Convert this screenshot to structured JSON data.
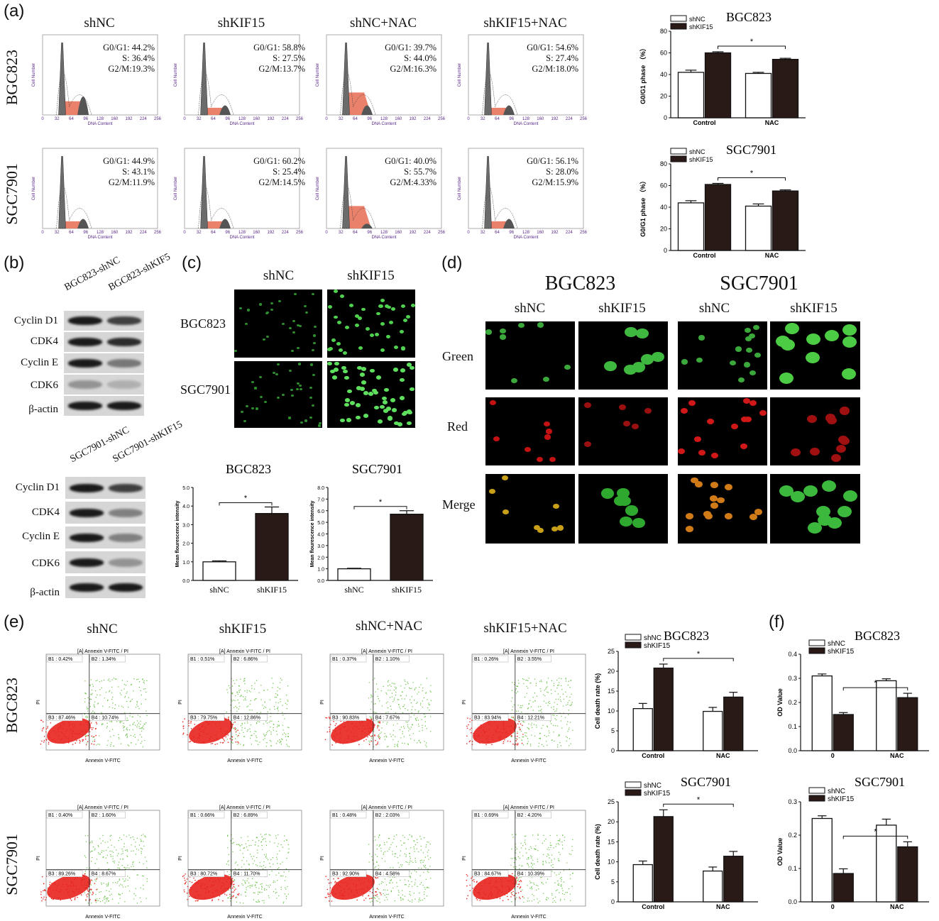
{
  "panels": {
    "a": "(a)",
    "b": "(b)",
    "c": "(c)",
    "d": "(d)",
    "e": "(e)",
    "f": "(f)"
  },
  "cell_lines": [
    "BGC823",
    "SGC7901"
  ],
  "groups_a": [
    "shNC",
    "shKIF15",
    "shNC+NAC",
    "shKIF15+NAC"
  ],
  "cell_cycle_stats": {
    "BGC823": [
      {
        "g0g1": "G0/G1: 44.2%",
        "s": "S: 36.4%",
        "g2m": "G2/M:19.3%"
      },
      {
        "g0g1": "G0/G1: 58.8%",
        "s": "S: 27.5%",
        "g2m": "G2/M:13.7%"
      },
      {
        "g0g1": "G0/G1: 39.7%",
        "s": "S: 44.0%",
        "g2m": "G2/M:16.3%"
      },
      {
        "g0g1": "G0/G1: 54.6%",
        "s": "S: 27.4%",
        "g2m": "G2/M:18.0%"
      }
    ],
    "SGC7901": [
      {
        "g0g1": "G0/G1: 44.9%",
        "s": "S: 43.1%",
        "g2m": "G2/M:11.9%"
      },
      {
        "g0g1": "G0/G1: 60.2%",
        "s": "S: 25.4%",
        "g2m": "G2/M:14.5%"
      },
      {
        "g0g1": "G0/G1: 40.0%",
        "s": "S: 55.7%",
        "g2m": "G2/M:4.33%"
      },
      {
        "g0g1": "G0/G1: 56.1%",
        "s": "S: 28.0%",
        "g2m": "G2/M:15.9%"
      }
    ]
  },
  "hist_axis": {
    "xlabel": "DNA Content",
    "ylabel": "Cell Number",
    "xticks": [
      "0",
      "32",
      "64",
      "96",
      "128",
      "160",
      "192",
      "224",
      "256"
    ]
  },
  "western": {
    "bgc_lanes": [
      "BGC823-shNC",
      "BGC823-shKIF5"
    ],
    "sgc_lanes": [
      "SGC7901-shNC",
      "SGC7901-shKIF15"
    ],
    "proteins": [
      "Cyclin D1",
      "CDK4",
      "Cyclin E",
      "CDK6",
      "β-actin"
    ]
  },
  "panel_c": {
    "cols": [
      "shNC",
      "shKIF15"
    ],
    "rows": [
      "BGC823",
      "SGC7901"
    ]
  },
  "panel_d": {
    "lines": [
      "BGC823",
      "SGC7901"
    ],
    "cols": [
      "shNC",
      "shKIF15",
      "shNC",
      "shKIF15"
    ],
    "rows": [
      "Green",
      "Red",
      "Merge"
    ]
  },
  "groups_e": [
    "shNC",
    "shKIF15",
    "shNC+NAC",
    "shKIF15+NAC"
  ],
  "flow": {
    "title": "[A] Annexin V-FITC / PI",
    "xlabel": "Annexin V-FITC",
    "ylabel": "PI",
    "BGC823": [
      {
        "b1": "B1 : 0.42%",
        "b2": "B2 : 1.34%",
        "b3": "B3 : 87.46%",
        "b4": "B4 : 10.74%"
      },
      {
        "b1": "B1 : 0.51%",
        "b2": "B2 : 6.86%",
        "b3": "B3 : 79.75%",
        "b4": "B4 : 12.86%"
      },
      {
        "b1": "B1 : 0.37%",
        "b2": "B2 : 1.10%",
        "b3": "B3 : 90.83%",
        "b4": "B4 : 7.67%"
      },
      {
        "b1": "B1 : 0.26%",
        "b2": "B2 : 3.55%",
        "b3": "B3 : 83.94%",
        "b4": "B4 : 12.21%"
      }
    ],
    "SGC7901": [
      {
        "b1": "B1 : 0.40%",
        "b2": "B2 : 1.60%",
        "b3": "B3 : 89.26%",
        "b4": "B4 : 8.67%"
      },
      {
        "b1": "B1 : 0.66%",
        "b2": "B2 : 6.89%",
        "b3": "B3 : 80.72%",
        "b4": "B4 : 11.70%"
      },
      {
        "b1": "B1 : 0.48%",
        "b2": "B2 : 2.03%",
        "b3": "B3 : 92.90%",
        "b4": "B4 : 4.58%"
      },
      {
        "b1": "B1 : 0.69%",
        "b2": "B2 : 4.20%",
        "b3": "B3 : 84.67%",
        "b4": "B4 : 10.39%"
      }
    ]
  },
  "colors": {
    "dark_bar": "#2a1a17",
    "open_bar": "#ffffff",
    "flow_red": "#e8231e",
    "flow_green": "#6cc24a",
    "hist_red": "#e8735a"
  },
  "chart_data": [
    {
      "id": "a_bgc",
      "type": "bar",
      "title": "BGC823",
      "categories": [
        "Control",
        "NAC"
      ],
      "ylabel": "G0/G1 phase （%）",
      "ylim": [
        0,
        80
      ],
      "yticks": [
        0,
        20,
        40,
        60,
        80
      ],
      "series": [
        {
          "name": "shNC",
          "values": [
            42,
            41
          ],
          "err": [
            2,
            1
          ]
        },
        {
          "name": "shKIF15",
          "values": [
            60,
            54
          ],
          "err": [
            1,
            1
          ]
        }
      ],
      "sig": "*"
    },
    {
      "id": "a_sgc",
      "type": "bar",
      "title": "SGC7901",
      "categories": [
        "Control",
        "NAC"
      ],
      "ylabel": "G0/G1 phase （%）",
      "ylim": [
        0,
        80
      ],
      "yticks": [
        0,
        20,
        40,
        60,
        80
      ],
      "series": [
        {
          "name": "shNC",
          "values": [
            44,
            41
          ],
          "err": [
            2,
            2
          ]
        },
        {
          "name": "shKIF15",
          "values": [
            61,
            55
          ],
          "err": [
            1,
            1
          ]
        }
      ],
      "sig": "*"
    },
    {
      "id": "c_bgc",
      "type": "bar",
      "title": "BGC823",
      "categories": [
        "shNC",
        "shKIF15"
      ],
      "ylabel": "Mean flourescence intensity",
      "ylim": [
        0,
        5
      ],
      "yticks": [
        "0.0",
        "1.0",
        "2.0",
        "3.0",
        "4.0",
        "5.0"
      ],
      "series": [
        {
          "values": [
            1.0,
            3.6
          ],
          "err": [
            0.05,
            0.35
          ]
        }
      ],
      "sig": "*"
    },
    {
      "id": "c_sgc",
      "type": "bar",
      "title": "SGC7901",
      "categories": [
        "shNC",
        "shKIF15"
      ],
      "ylabel": "Mean flourescence intensity",
      "ylim": [
        0,
        8
      ],
      "yticks": [
        "0.0",
        "1.0",
        "2.0",
        "3.0",
        "4.0",
        "5.0",
        "6.0",
        "7.0",
        "8.0"
      ],
      "series": [
        {
          "values": [
            1.0,
            5.7
          ],
          "err": [
            0.05,
            0.3
          ]
        }
      ],
      "sig": "*"
    },
    {
      "id": "e_bgc",
      "type": "bar",
      "title": "BGC823",
      "categories": [
        "Control",
        "NAC"
      ],
      "ylabel": "Cell death rate (%)",
      "ylim": [
        0,
        25
      ],
      "yticks": [
        0,
        5,
        10,
        15,
        20,
        25
      ],
      "series": [
        {
          "name": "shNC",
          "values": [
            10.6,
            9.9
          ],
          "err": [
            1.3,
            1.0
          ]
        },
        {
          "name": "shKIF15",
          "values": [
            20.8,
            13.5
          ],
          "err": [
            1.0,
            1.2
          ]
        }
      ],
      "sig": "*"
    },
    {
      "id": "e_sgc",
      "type": "bar",
      "title": "SGC7901",
      "categories": [
        "Control",
        "NAC"
      ],
      "ylabel": "Cell death rate (%)",
      "ylim": [
        0,
        25
      ],
      "yticks": [
        0,
        5,
        10,
        15,
        20,
        25
      ],
      "series": [
        {
          "name": "shNC",
          "values": [
            9.3,
            7.7
          ],
          "err": [
            0.9,
            1.0
          ]
        },
        {
          "name": "shKIF15",
          "values": [
            21.3,
            11.4
          ],
          "err": [
            1.7,
            1.2
          ]
        }
      ],
      "sig": "*"
    },
    {
      "id": "f_bgc",
      "type": "bar",
      "title": "BGC823",
      "categories": [
        "0",
        "NAC"
      ],
      "ylabel": "OD Value",
      "ylim": [
        0,
        0.4
      ],
      "yticks": [
        "0.0",
        "0.1",
        "0.2",
        "0.3",
        "0.4"
      ],
      "series": [
        {
          "name": "shNC",
          "values": [
            0.31,
            0.29
          ],
          "err": [
            0.008,
            0.008
          ]
        },
        {
          "name": "shKIF15",
          "values": [
            0.15,
            0.22
          ],
          "err": [
            0.008,
            0.018
          ]
        }
      ],
      "sig": "*"
    },
    {
      "id": "f_sgc",
      "type": "bar",
      "title": "SGC7901",
      "categories": [
        "0",
        "NAC"
      ],
      "ylabel": "OD Value",
      "ylim": [
        0,
        0.3
      ],
      "yticks": [
        "0.0",
        "0.1",
        "0.2",
        "0.3"
      ],
      "series": [
        {
          "name": "shNC",
          "values": [
            0.25,
            0.23
          ],
          "err": [
            0.008,
            0.018
          ]
        },
        {
          "name": "shKIF15",
          "values": [
            0.085,
            0.165
          ],
          "err": [
            0.014,
            0.015
          ]
        }
      ],
      "sig": "*"
    }
  ]
}
